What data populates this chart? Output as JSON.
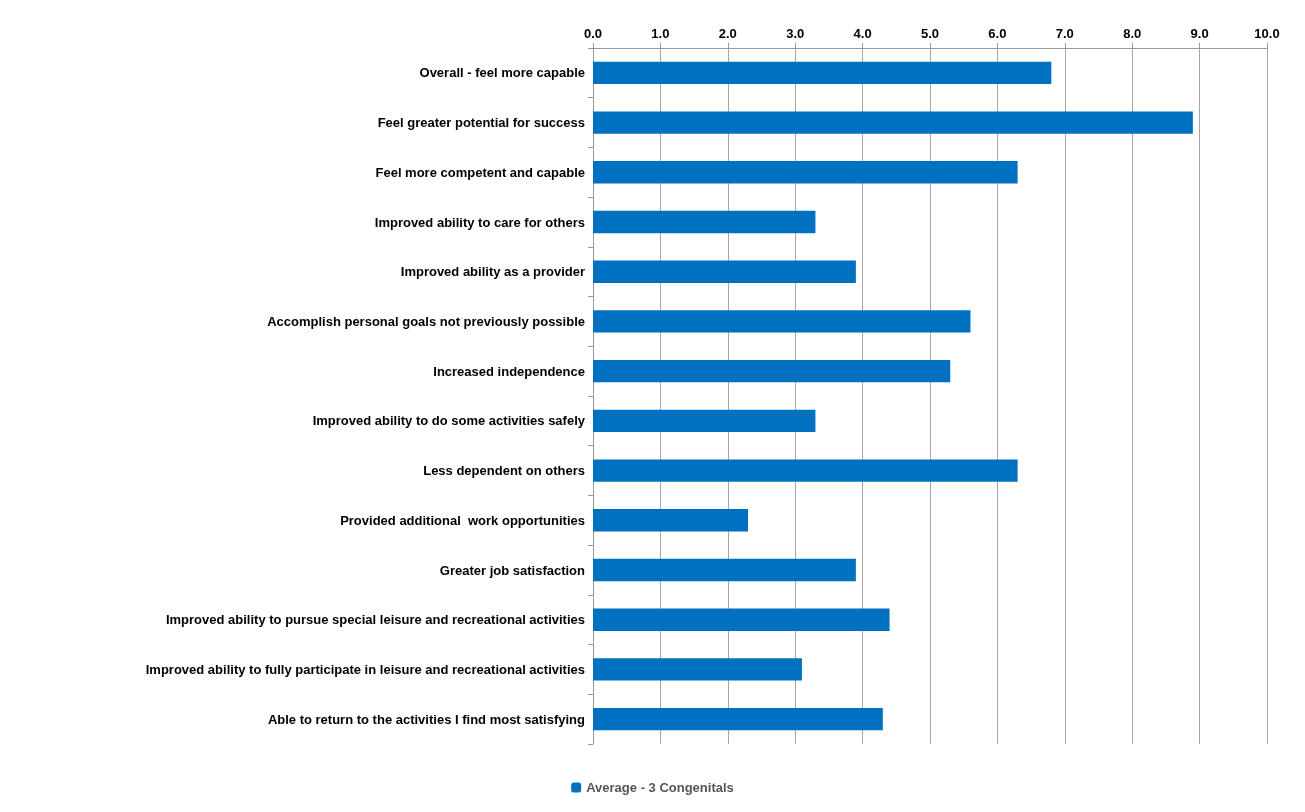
{
  "chart_data": {
    "type": "bar",
    "orientation": "horizontal",
    "categories": [
      "Overall - feel more capable",
      "Feel greater potential for success",
      "Feel more competent and capable",
      "Improved ability to care for others",
      "Improved ability as a provider",
      "Accomplish personal goals not previously possible",
      "Increased independence",
      "Improved ability to do some activities safely",
      "Less dependent on others",
      "Provided additional  work opportunities",
      "Greater job satisfaction",
      "Improved ability to pursue special leisure and recreational activities",
      "Improved ability to fully participate in leisure and recreational activities",
      "Able to return to the activities I find most satisfying"
    ],
    "series": [
      {
        "name": "Average - 3 Congenitals",
        "color": "#0070c0",
        "values": [
          6.8,
          8.9,
          6.3,
          3.3,
          3.9,
          5.6,
          5.3,
          3.3,
          6.3,
          2.3,
          3.9,
          4.4,
          3.1,
          4.3
        ]
      }
    ],
    "xlim": [
      0,
      10
    ],
    "xticks": [
      {
        "value": 0,
        "label": "0.0"
      },
      {
        "value": 1,
        "label": "1.0"
      },
      {
        "value": 2,
        "label": "2.0"
      },
      {
        "value": 3,
        "label": "3.0"
      },
      {
        "value": 4,
        "label": "4.0"
      },
      {
        "value": 5,
        "label": "5.0"
      },
      {
        "value": 6,
        "label": "6.0"
      },
      {
        "value": 7,
        "label": "7.0"
      },
      {
        "value": 8,
        "label": "8.0"
      },
      {
        "value": 9,
        "label": "9.0"
      },
      {
        "value": 10,
        "label": "10.0"
      }
    ],
    "grid": "x",
    "legend": "bottom"
  }
}
